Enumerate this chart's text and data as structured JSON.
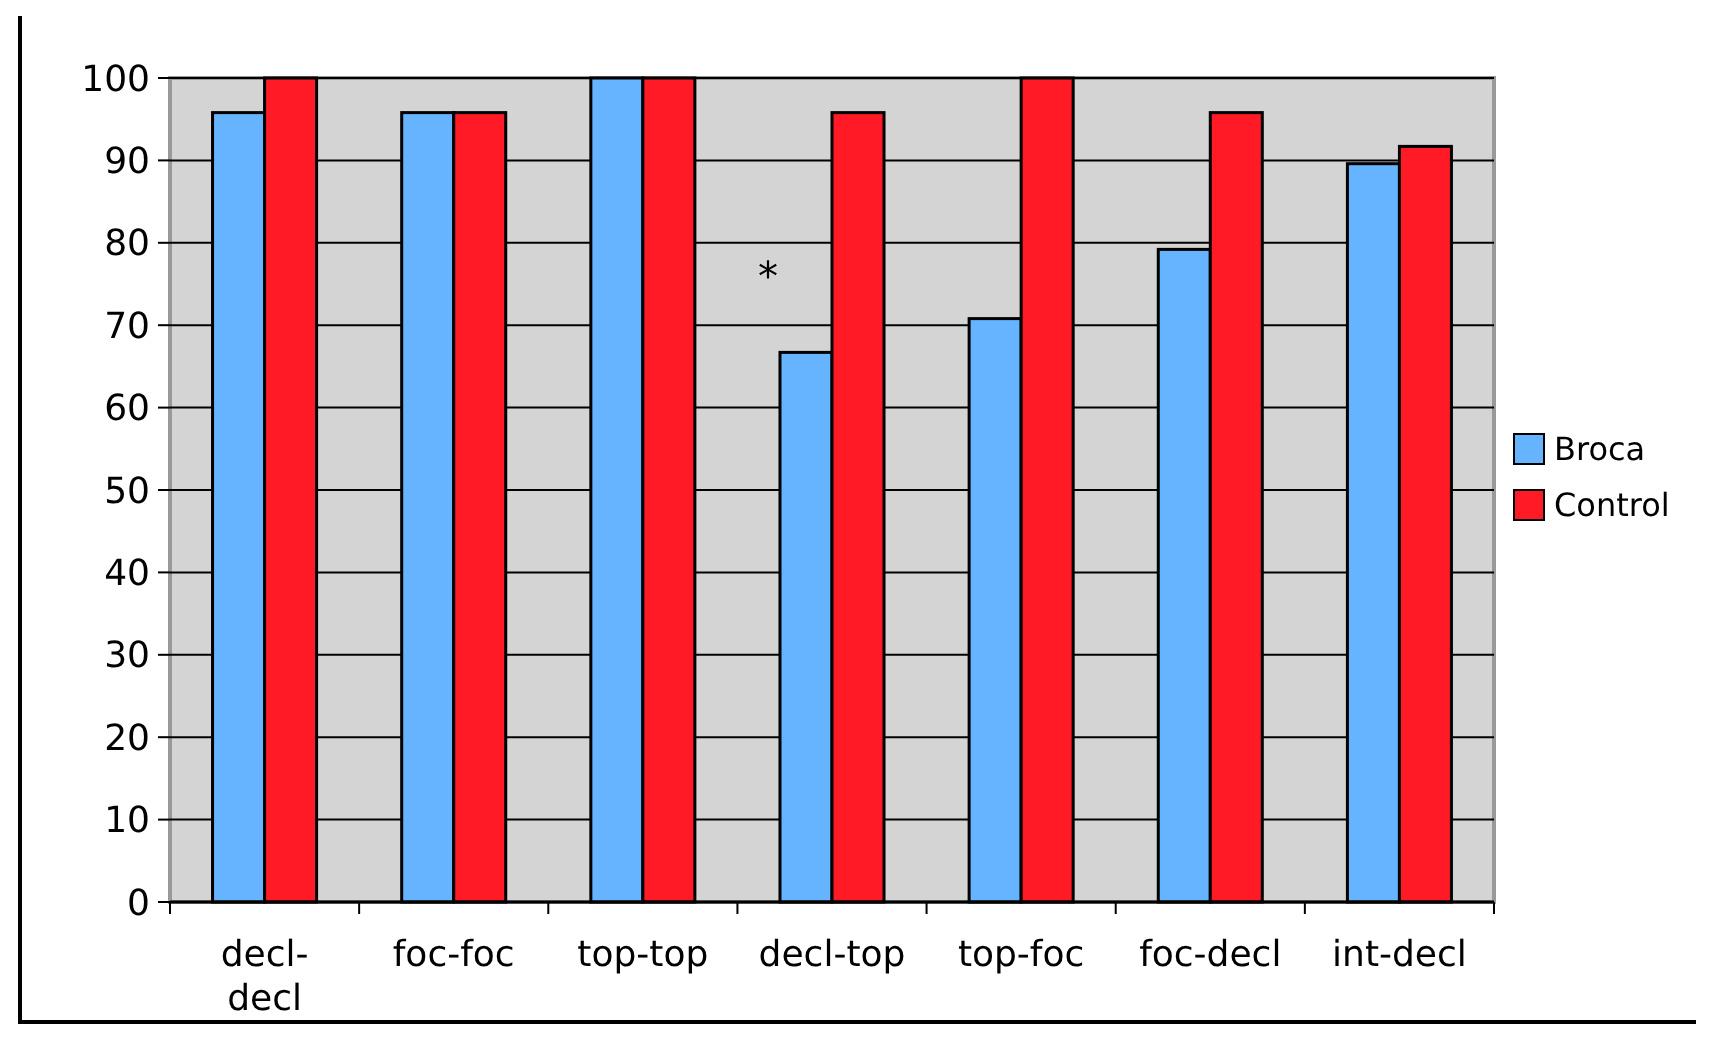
{
  "chart_data": {
    "type": "bar",
    "categories": [
      "decl-decl",
      "foc-foc",
      "top-top",
      "decl-top",
      "top-foc",
      "foc-decl",
      "int-decl"
    ],
    "series": [
      {
        "name": "Broca",
        "color": "#66b3ff",
        "values": [
          95.8,
          95.8,
          100,
          66.7,
          70.8,
          79.2,
          89.6
        ]
      },
      {
        "name": "Control",
        "color": "#ff1a26",
        "values": [
          100,
          95.8,
          100,
          95.8,
          100,
          95.8,
          91.7
        ]
      }
    ],
    "ylim": [
      0,
      100
    ],
    "yticks": [
      0,
      10,
      20,
      30,
      40,
      50,
      60,
      70,
      80,
      90,
      100
    ],
    "grid": "y",
    "legend": "right",
    "annotations": [
      {
        "text": "*",
        "x": "decl-top",
        "y": 76
      }
    ]
  }
}
